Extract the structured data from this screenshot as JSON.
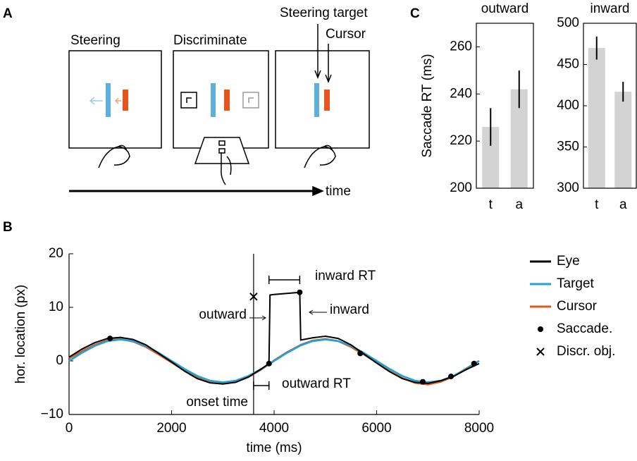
{
  "panel_labels": [
    "A",
    "B",
    "C"
  ],
  "diagram": {
    "steering": "Steering",
    "discriminate": "Discriminate",
    "steering_target": "Steering target",
    "cursor": "Cursor",
    "time": "time"
  },
  "chart_data": [
    {
      "type": "line",
      "xlabel": "time (ms)",
      "ylabel": "hor. location (px)",
      "xlim": [
        0,
        8000
      ],
      "xticks": [
        0,
        2000,
        4000,
        6000,
        8000
      ],
      "ylim": [
        -10,
        20
      ],
      "yticks": [
        {
          "value": -10,
          "label": "−10"
        },
        0,
        10,
        20
      ],
      "x": [
        0,
        250,
        500,
        750,
        1000,
        1250,
        1500,
        1750,
        2000,
        2250,
        2500,
        2750,
        3000,
        3250,
        3500,
        3750,
        3900,
        3920,
        4000,
        4250,
        4500,
        4520,
        4750,
        5000,
        5250,
        5500,
        5750,
        6000,
        6250,
        6500,
        6750,
        7000,
        7250,
        7500,
        7750,
        8000
      ],
      "series": [
        {
          "name": "Eye",
          "color": "#000000",
          "values": [
            0.7,
            2.2,
            3.4,
            4.2,
            4.4,
            4.0,
            3.0,
            1.4,
            -0.2,
            -1.9,
            -3.3,
            -4.1,
            -4.3,
            -4.0,
            -3.0,
            -1.5,
            -0.5,
            12.3,
            12.4,
            12.6,
            12.8,
            3.9,
            4.3,
            4.6,
            4.2,
            3.0,
            1.3,
            -0.4,
            -2.0,
            -3.3,
            -4.0,
            -4.2,
            -3.7,
            -2.9,
            -1.6,
            -0.5
          ]
        },
        {
          "name": "Target",
          "color": "#1ca3d8",
          "values": [
            0,
            1.5,
            2.8,
            3.7,
            4,
            3.7,
            2.8,
            1.5,
            0,
            -1.5,
            -2.8,
            -3.7,
            -4,
            -3.7,
            -2.8,
            -1.5,
            -0.6,
            -0.5,
            0,
            1.5,
            2.8,
            2.9,
            3.7,
            4,
            3.7,
            2.8,
            1.5,
            0,
            -1.5,
            -2.8,
            -3.7,
            -4,
            -3.7,
            -2.8,
            -1.5,
            0
          ]
        },
        {
          "name": "Cursor",
          "color": "#e8541c",
          "values": [
            0.5,
            1.8,
            3.0,
            3.9,
            4.1,
            3.6,
            2.6,
            1.2,
            -0.3,
            -1.8,
            -3.1,
            -3.9,
            -4.2,
            -3.9,
            -3.0,
            -1.6,
            -0.6,
            -0.5,
            0.1,
            1.6,
            2.9,
            3.0,
            3.8,
            4.1,
            3.7,
            2.6,
            1.2,
            -0.3,
            -1.9,
            -3.2,
            -4.1,
            -4.4,
            -3.9,
            -2.9,
            -1.4,
            0
          ]
        }
      ],
      "markers": [
        {
          "name": "Saccade.",
          "marker": "dot",
          "color": "#000000",
          "x": [
            800,
            3900,
            4500,
            5680,
            6900,
            7450,
            7900
          ],
          "y": [
            4.2,
            -0.5,
            12.8,
            1.4,
            -3.9,
            -2.9,
            -0.5
          ]
        },
        {
          "name": "Discr. obj.",
          "marker": "cross",
          "color": "#000000",
          "x": [
            3600
          ],
          "y": [
            12
          ]
        }
      ],
      "annotations": [
        "inward RT",
        "outward RT",
        "onset time",
        "outward",
        "inward"
      ]
    },
    {
      "type": "bar",
      "title": "outward",
      "ylabel": "Saccade RT (ms)",
      "categories": [
        "t",
        "a"
      ],
      "values": [
        226,
        242
      ],
      "errors": [
        8,
        8
      ],
      "color": "#d3d3d3",
      "ylim": [
        200,
        270
      ],
      "yticks": [
        200,
        220,
        240,
        260
      ]
    },
    {
      "type": "bar",
      "title": "inward",
      "categories": [
        "t",
        "a"
      ],
      "values": [
        470,
        417
      ],
      "errors": [
        14,
        12
      ],
      "color": "#d3d3d3",
      "ylim": [
        300,
        500
      ],
      "yticks": [
        300,
        350,
        400,
        450,
        500
      ]
    }
  ]
}
